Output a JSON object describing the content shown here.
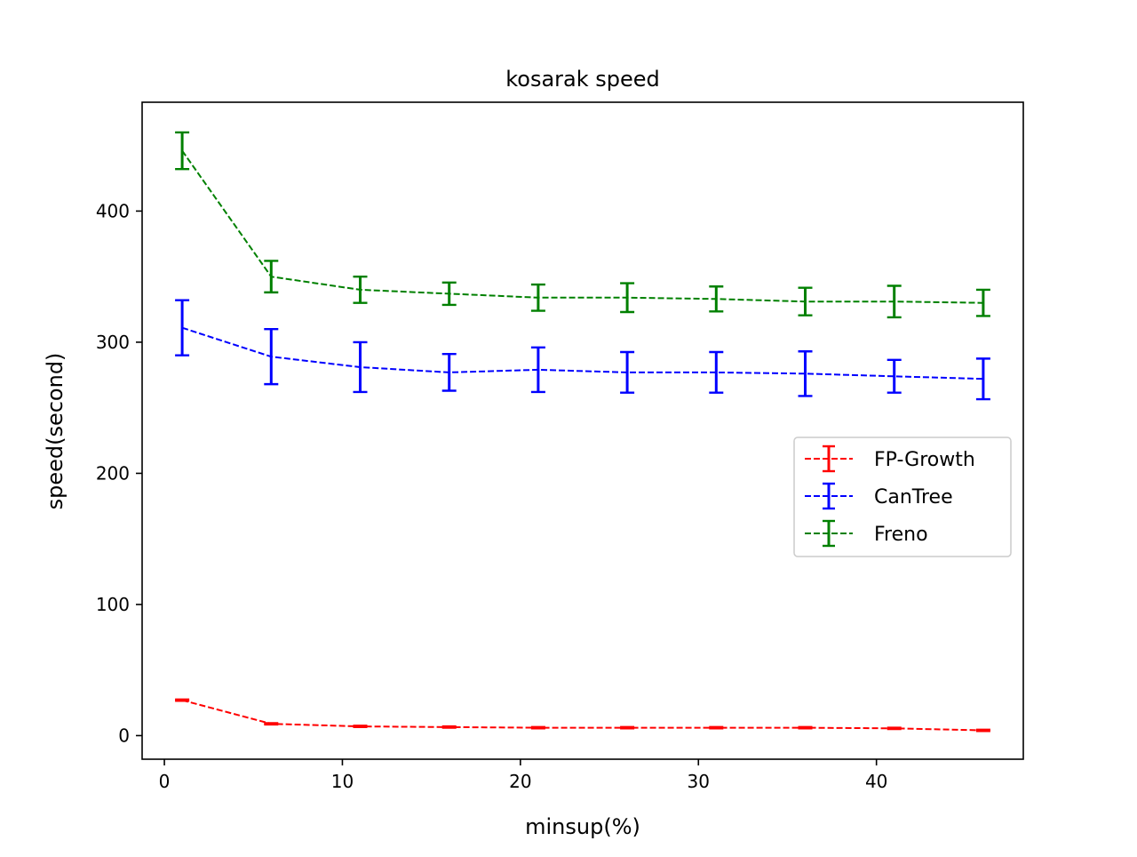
{
  "chart_data": {
    "type": "line",
    "title": "kosarak speed",
    "xlabel": "minsup(%)",
    "ylabel": "speed(second)",
    "x": [
      1,
      6,
      11,
      16,
      21,
      26,
      31,
      36,
      41,
      46
    ],
    "xlim": [
      -1.25,
      48.25
    ],
    "ylim": [
      -18,
      483
    ],
    "xticks": [
      0,
      10,
      20,
      30,
      40
    ],
    "yticks": [
      0,
      100,
      200,
      300,
      400
    ],
    "grid": false,
    "legend_position": "center-right",
    "series": [
      {
        "name": "FP-Growth",
        "color": "#ff0000",
        "values": [
          27,
          9,
          7,
          6.5,
          6,
          6,
          6,
          6,
          5.5,
          4
        ],
        "errors": [
          0.5,
          0.5,
          0.5,
          0.5,
          0.5,
          0.5,
          0.5,
          0.5,
          0.5,
          0.5
        ]
      },
      {
        "name": "CanTree",
        "color": "#0000ff",
        "values": [
          311,
          289,
          281,
          277,
          279,
          277,
          277,
          276,
          274,
          272
        ],
        "errors": [
          21,
          21,
          19,
          14,
          17,
          15.5,
          15.5,
          17,
          12.5,
          15.5
        ]
      },
      {
        "name": "Freno",
        "color": "#008000",
        "values": [
          446,
          350,
          340,
          337,
          334,
          334,
          333,
          331,
          331,
          330
        ],
        "errors": [
          14,
          12,
          10,
          8.5,
          10,
          11,
          9.5,
          10.5,
          12,
          10
        ]
      }
    ]
  }
}
